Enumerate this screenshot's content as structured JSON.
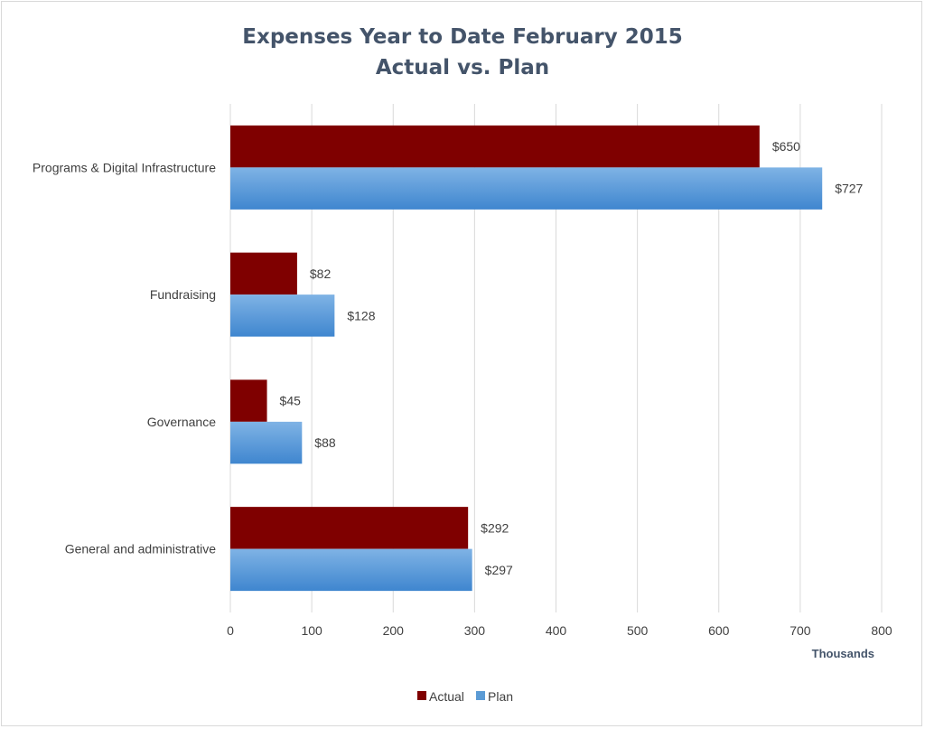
{
  "chart_data": {
    "type": "bar",
    "orientation": "horizontal",
    "title": [
      "Expenses Year to Date February 2015",
      "Actual vs. Plan"
    ],
    "categories": [
      "Programs & Digital Infrastructure",
      "Fundraising",
      "Governance",
      "General and administrative"
    ],
    "series": [
      {
        "name": "Actual",
        "color": "#7f0000",
        "values": [
          650,
          82,
          45,
          292
        ],
        "labels": [
          "$650",
          "$82",
          "$45",
          "$292"
        ]
      },
      {
        "name": "Plan",
        "color": "#5b9bd5",
        "values": [
          727,
          128,
          88,
          297
        ],
        "labels": [
          "$727",
          "$128",
          "$88",
          "$297"
        ]
      }
    ],
    "xlabel": "Thousands",
    "ylabel": "",
    "xlim": [
      0,
      800
    ],
    "xticks": [
      0,
      100,
      200,
      300,
      400,
      500,
      600,
      700,
      800
    ],
    "grid": true,
    "legend_position": "bottom"
  }
}
